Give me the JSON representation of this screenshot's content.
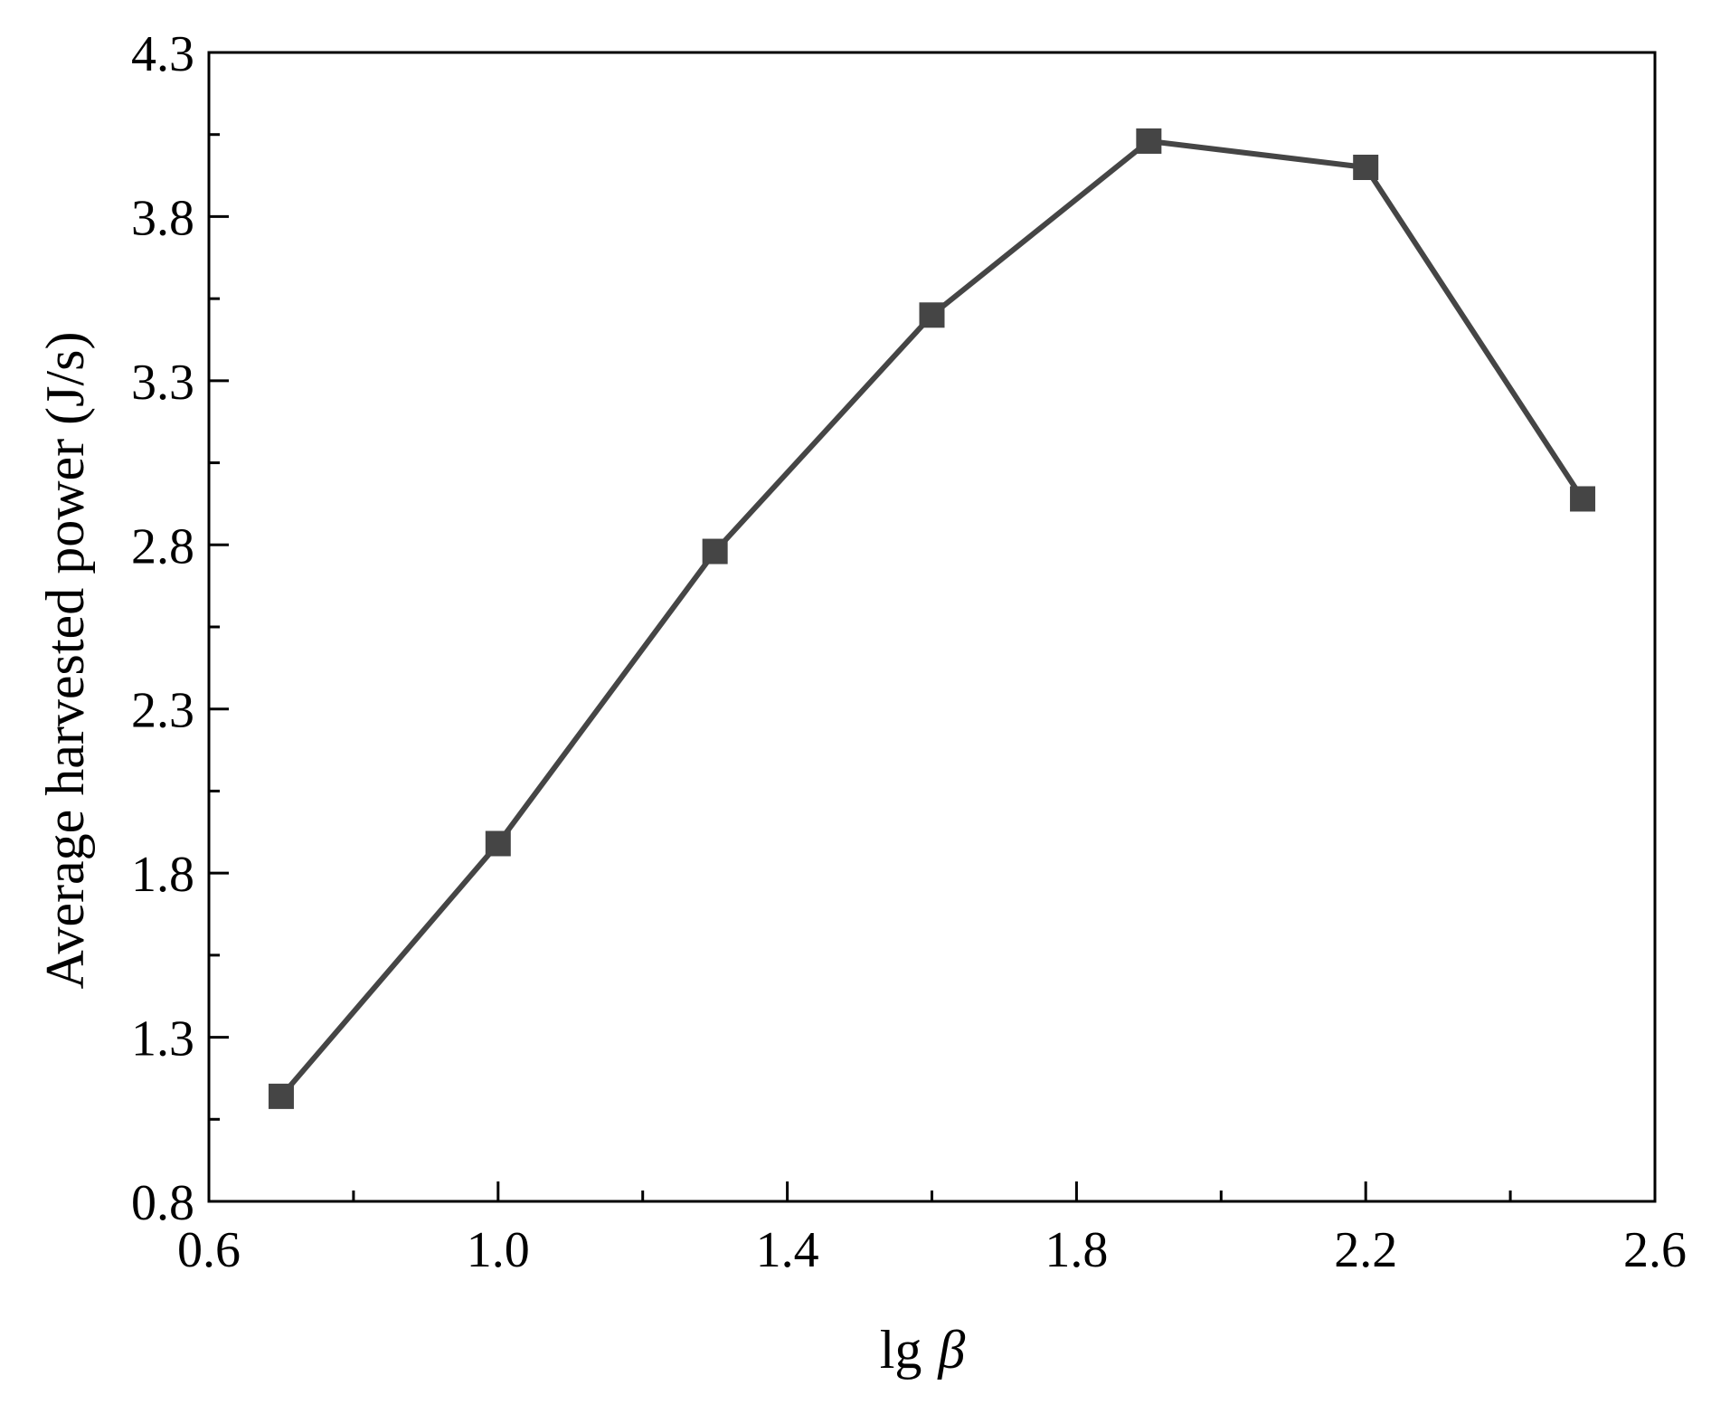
{
  "chart_data": {
    "type": "line",
    "title": "",
    "xlabel": "lg β",
    "xlabel_main": "lg",
    "xlabel_symbol": "β",
    "ylabel": "Average harvested power (J/s)",
    "xlim": [
      0.6,
      2.6
    ],
    "ylim": [
      0.8,
      4.3
    ],
    "x_ticks": [
      "0.6",
      "1.0",
      "1.4",
      "1.8",
      "2.2",
      "2.6"
    ],
    "y_ticks": [
      "0.8",
      "1.3",
      "1.8",
      "2.3",
      "2.8",
      "3.3",
      "3.8",
      "4.3"
    ],
    "x_minor_step": 0.2,
    "y_minor_step": 0.25,
    "grid": false,
    "legend": "none",
    "series": [
      {
        "marker": "square",
        "color": "#454545",
        "x": [
          0.7,
          1.0,
          1.3,
          1.6,
          1.9,
          2.2,
          2.5
        ],
        "y": [
          1.12,
          1.89,
          2.78,
          3.5,
          4.03,
          3.95,
          2.94
        ]
      }
    ]
  }
}
